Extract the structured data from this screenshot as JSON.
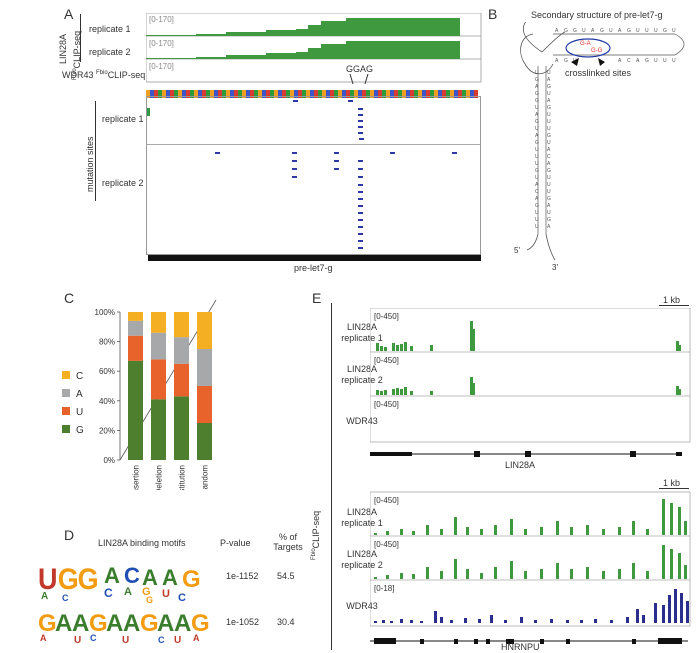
{
  "panel_labels": {
    "a": "A",
    "b": "B",
    "c": "C",
    "d": "D",
    "e": "E"
  },
  "panel_a": {
    "group_label_line1": "LIN28A",
    "group_label_line2_sup": "Fbio",
    "group_label_line2": "CLIP-seq",
    "tracks": [
      {
        "label": "replicate 1",
        "range": "[0-170]"
      },
      {
        "label": "replicate 2",
        "range": "[0-170]"
      },
      {
        "label_sup": "Fbio",
        "label_prefix": "WDR43 ",
        "label": "CLIP-seq",
        "range": "[0-170]"
      }
    ],
    "motif_marker": "GGAG",
    "mutation_group_label": "mutation sites",
    "mutation_rows": [
      "replicate 1",
      "replicate 2"
    ],
    "gene_label": "pre-let7-g"
  },
  "panel_b": {
    "title": "Secondary structure of pre-let7-g",
    "annotation": "crosslinked sites",
    "end5": "5'",
    "end3": "3'",
    "highlight_color": "#1f3aa8",
    "crosslink_color": "#e0302a"
  },
  "panel_c": {
    "chart_data": {
      "type": "bar",
      "stacked": true,
      "categories": [
        "Insertion",
        "Deletion",
        "Substitution",
        "Random"
      ],
      "series": [
        {
          "name": "G",
          "color": "#4d7f2e",
          "values": [
            67,
            41,
            43,
            25
          ]
        },
        {
          "name": "U",
          "color": "#e8622c",
          "values": [
            17,
            27,
            22,
            25
          ]
        },
        {
          "name": "A",
          "color": "#a7a8aa",
          "values": [
            10,
            18,
            18,
            25
          ]
        },
        {
          "name": "C",
          "color": "#f4af22",
          "values": [
            6,
            14,
            17,
            25
          ]
        }
      ],
      "y_ticks": [
        "0%",
        "20%",
        "40%",
        "60%",
        "80%",
        "100%"
      ],
      "ylim": [
        0,
        100
      ],
      "legend_order": [
        "C",
        "A",
        "U",
        "G"
      ]
    }
  },
  "panel_d": {
    "title": "LIN28A binding motifs",
    "col_pvalue": "P-value",
    "col_targets_line1": "% of",
    "col_targets_line2": "Targets",
    "rows": [
      {
        "motif_top": "UGGACAAG",
        "pvalue": "1e-1152",
        "targets": "54.5"
      },
      {
        "motif_top": "GAAGAAGAAG",
        "pvalue": "1e-1052",
        "targets": "30.4"
      }
    ]
  },
  "panel_e": {
    "axis_label_sup": "Fbio",
    "axis_label": "CLIP-seq",
    "scale": "1 kb",
    "loci": [
      {
        "gene": "LIN28A",
        "tracks": [
          {
            "label1": "LIN28A",
            "label2": "replicate 1",
            "range": "[0-450]",
            "color": "#3f9a3f"
          },
          {
            "label1": "LIN28A",
            "label2": "replicate 2",
            "range": "[0-450]",
            "color": "#3f9a3f"
          },
          {
            "label1": "WDR43",
            "label2": "",
            "range": "[0-450]",
            "color": "#3f9a3f"
          }
        ]
      },
      {
        "gene": "HNRNPU",
        "tracks": [
          {
            "label1": "LIN28A",
            "label2": "replicate 1",
            "range": "[0-450]",
            "color": "#3f9a3f"
          },
          {
            "label1": "LIN28A",
            "label2": "replicate 2",
            "range": "[0-450]",
            "color": "#3f9a3f"
          },
          {
            "label1": "WDR43",
            "label2": "",
            "range": "[0-18]",
            "color": "#2a2f8f"
          }
        ]
      }
    ]
  }
}
